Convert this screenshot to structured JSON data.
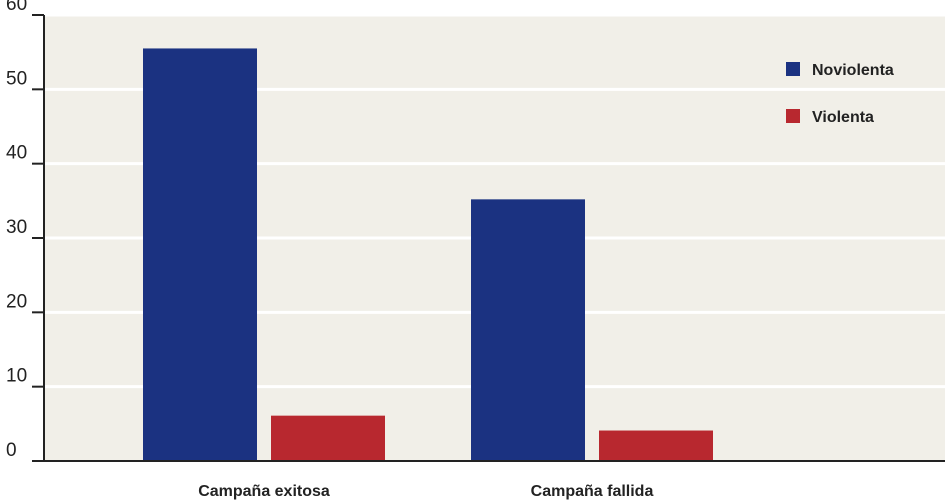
{
  "chart_data": {
    "type": "bar",
    "categories": [
      "Campaña exitosa",
      "Campaña fallida"
    ],
    "series": [
      {
        "name": "Noviolenta",
        "values": [
          55.5,
          35.2
        ],
        "color": "#1b3281"
      },
      {
        "name": "Violenta",
        "values": [
          6.1,
          4.1
        ],
        "color": "#b8282f"
      }
    ],
    "title": "",
    "xlabel": "",
    "ylabel": "",
    "ylim": [
      0,
      60
    ],
    "yticks": [
      0,
      10,
      20,
      30,
      40,
      50,
      60
    ],
    "grid": true,
    "legend_position": "top-right",
    "background_color": "#f1efe8",
    "grid_color": "#ffffff",
    "axis_color": "#222222"
  }
}
